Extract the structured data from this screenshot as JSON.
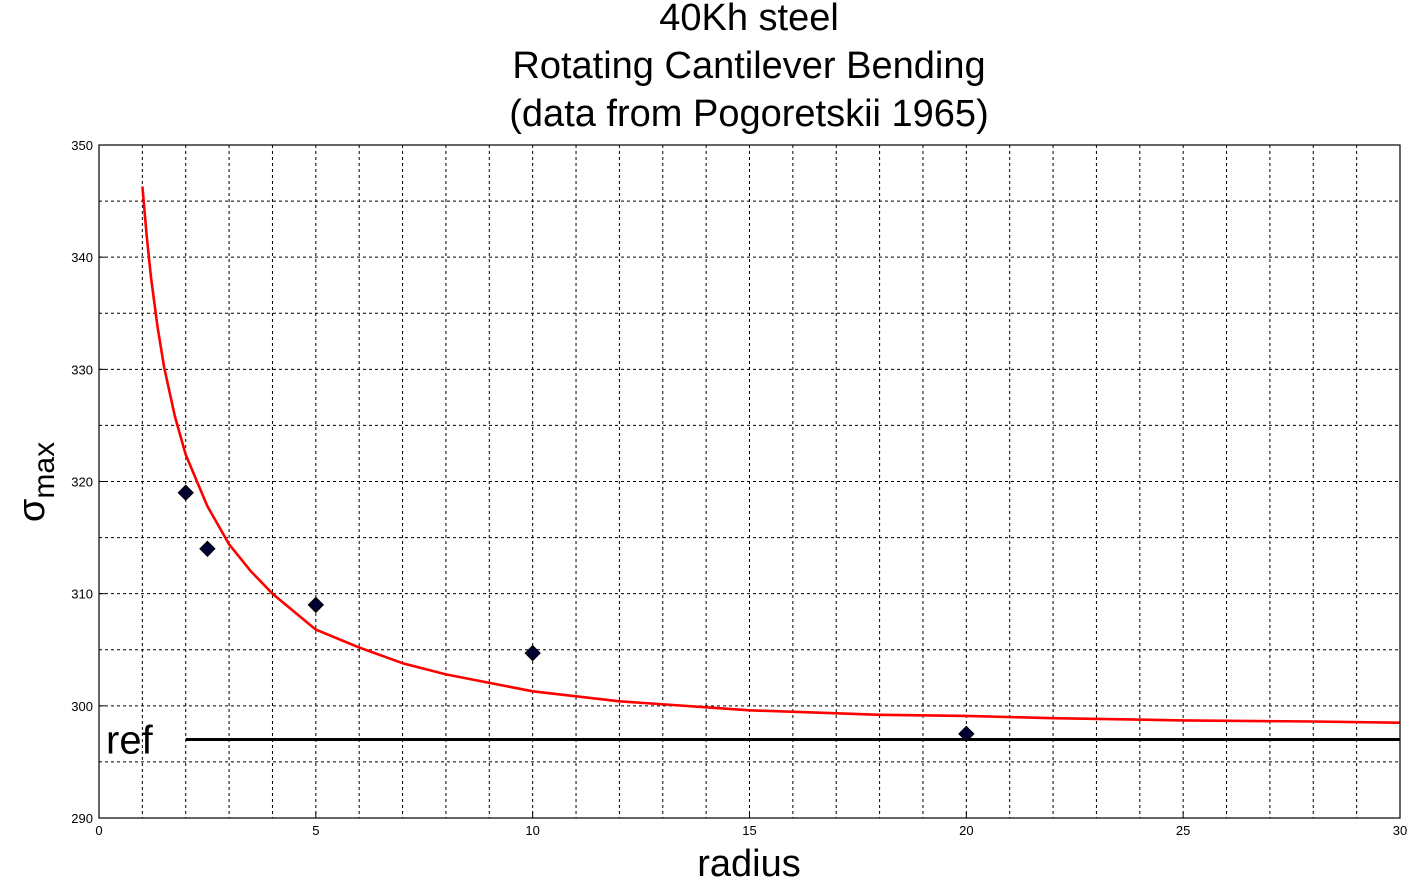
{
  "chart_data": {
    "type": "scatter",
    "title": [
      "40Kh steel",
      "Rotating Cantilever Bending",
      "(data from Pogoretskii 1965)"
    ],
    "xlabel": "radius",
    "ylabel": {
      "symbol": "σ",
      "subscript": "max"
    },
    "xlim": [
      0,
      30
    ],
    "ylim": [
      290,
      350
    ],
    "xticks": [
      0,
      5,
      10,
      15,
      20,
      25,
      30
    ],
    "yticks": [
      290,
      300,
      310,
      320,
      330,
      340,
      350
    ],
    "x_minor_step": 1,
    "y_minor_step": 5,
    "grid": true,
    "series": [
      {
        "kind": "points",
        "marker": "diamond",
        "color": "#000033",
        "x": [
          2,
          2.5,
          5,
          10,
          20
        ],
        "y": [
          319,
          314,
          309,
          304.7,
          297.5
        ]
      },
      {
        "kind": "fit-curve",
        "color": "#ff0000",
        "x": [
          1,
          1.1,
          1.2,
          1.35,
          1.5,
          1.75,
          2,
          2.5,
          3,
          3.5,
          4,
          5,
          6,
          7,
          8,
          10,
          12,
          15,
          18,
          20,
          22,
          25,
          28,
          30
        ],
        "y": [
          346.3,
          341.9,
          338.2,
          333.8,
          330.2,
          325.8,
          322.4,
          317.8,
          314.4,
          312.0,
          310.0,
          306.8,
          305.2,
          303.8,
          302.8,
          301.3,
          300.4,
          299.6,
          299.2,
          299.1,
          298.9,
          298.7,
          298.6,
          298.5
        ]
      },
      {
        "kind": "reference-line",
        "label": "ref",
        "color": "#000000",
        "x": [
          2,
          30
        ],
        "y": [
          297,
          297
        ]
      }
    ]
  }
}
